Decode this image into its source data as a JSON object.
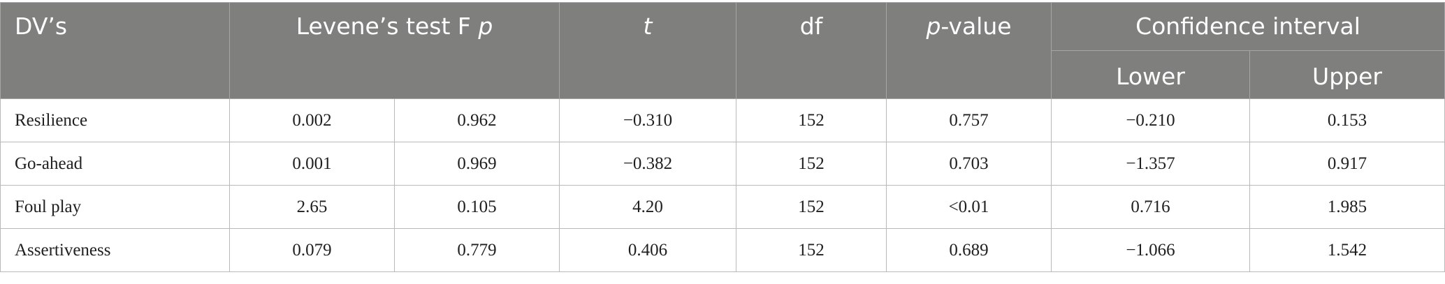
{
  "table": {
    "header": {
      "dv": "DV’s",
      "levene_prefix": "Levene’s test F ",
      "levene_p": "p",
      "t": "t",
      "df": "df",
      "pvalue_p": "p",
      "pvalue_suffix": "-value",
      "ci": "Confidence interval",
      "lower": "Lower",
      "upper": "Upper"
    },
    "rows": [
      {
        "dv": "Resilience",
        "F": "0.002",
        "p": "0.962",
        "t": "−0.310",
        "df": "152",
        "pvalue": "0.757",
        "lower": "−0.210",
        "upper": "0.153"
      },
      {
        "dv": "Go-ahead",
        "F": "0.001",
        "p": "0.969",
        "t": "−0.382",
        "df": "152",
        "pvalue": "0.703",
        "lower": "−1.357",
        "upper": "0.917"
      },
      {
        "dv": "Foul play",
        "F": "2.65",
        "p": "0.105",
        "t": "4.20",
        "df": "152",
        "pvalue": "<0.01",
        "lower": "0.716",
        "upper": "1.985"
      },
      {
        "dv": "Assertiveness",
        "F": "0.079",
        "p": "0.779",
        "t": "0.406",
        "df": "152",
        "pvalue": "0.689",
        "lower": "−1.066",
        "upper": "1.542"
      }
    ]
  }
}
